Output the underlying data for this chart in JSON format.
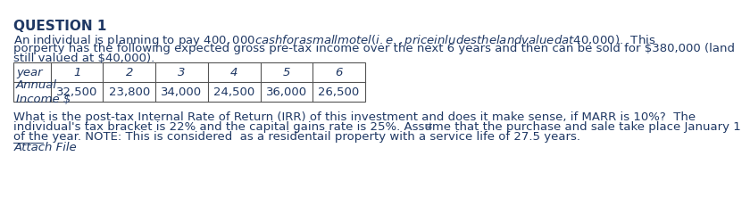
{
  "title": "QUESTION 1",
  "para1_line1": "An individual is planning to pay $400,000 cash for a small motel (i.e., price inludes the land valued at $40,000).  This",
  "para1_line2": "porperty has the following expected gross pre-tax income over the next 6 years and then can be sold for $380,000 (land",
  "para1_line3": "still valued at $40,000).",
  "table_headers": [
    "year",
    "1",
    "2",
    "3",
    "4",
    "5",
    "6"
  ],
  "table_row1_label": "Annual\nIncome $",
  "table_values": [
    "32,500",
    "23,800",
    "34,000",
    "24,500",
    "36,000",
    "26,500"
  ],
  "para2_line1": "What is the post-tax Internal Rate of Return (IRR) of this investment and does it make sense, if MARR is 10%?  The",
  "para2_line2": "individual's tax bracket is 22% and the capital gains rate is 25%. Assume that the purchase and sale take place January 1",
  "para2_superscript": "st",
  "para2_line3": "of the year. NOTE: This is considered  as a residentail property with a service life of 27.5 years.",
  "attach_file": "Attach File",
  "bg_color": "#ffffff",
  "text_color": "#1f3864",
  "font_size": 9.5,
  "title_font_size": 11
}
